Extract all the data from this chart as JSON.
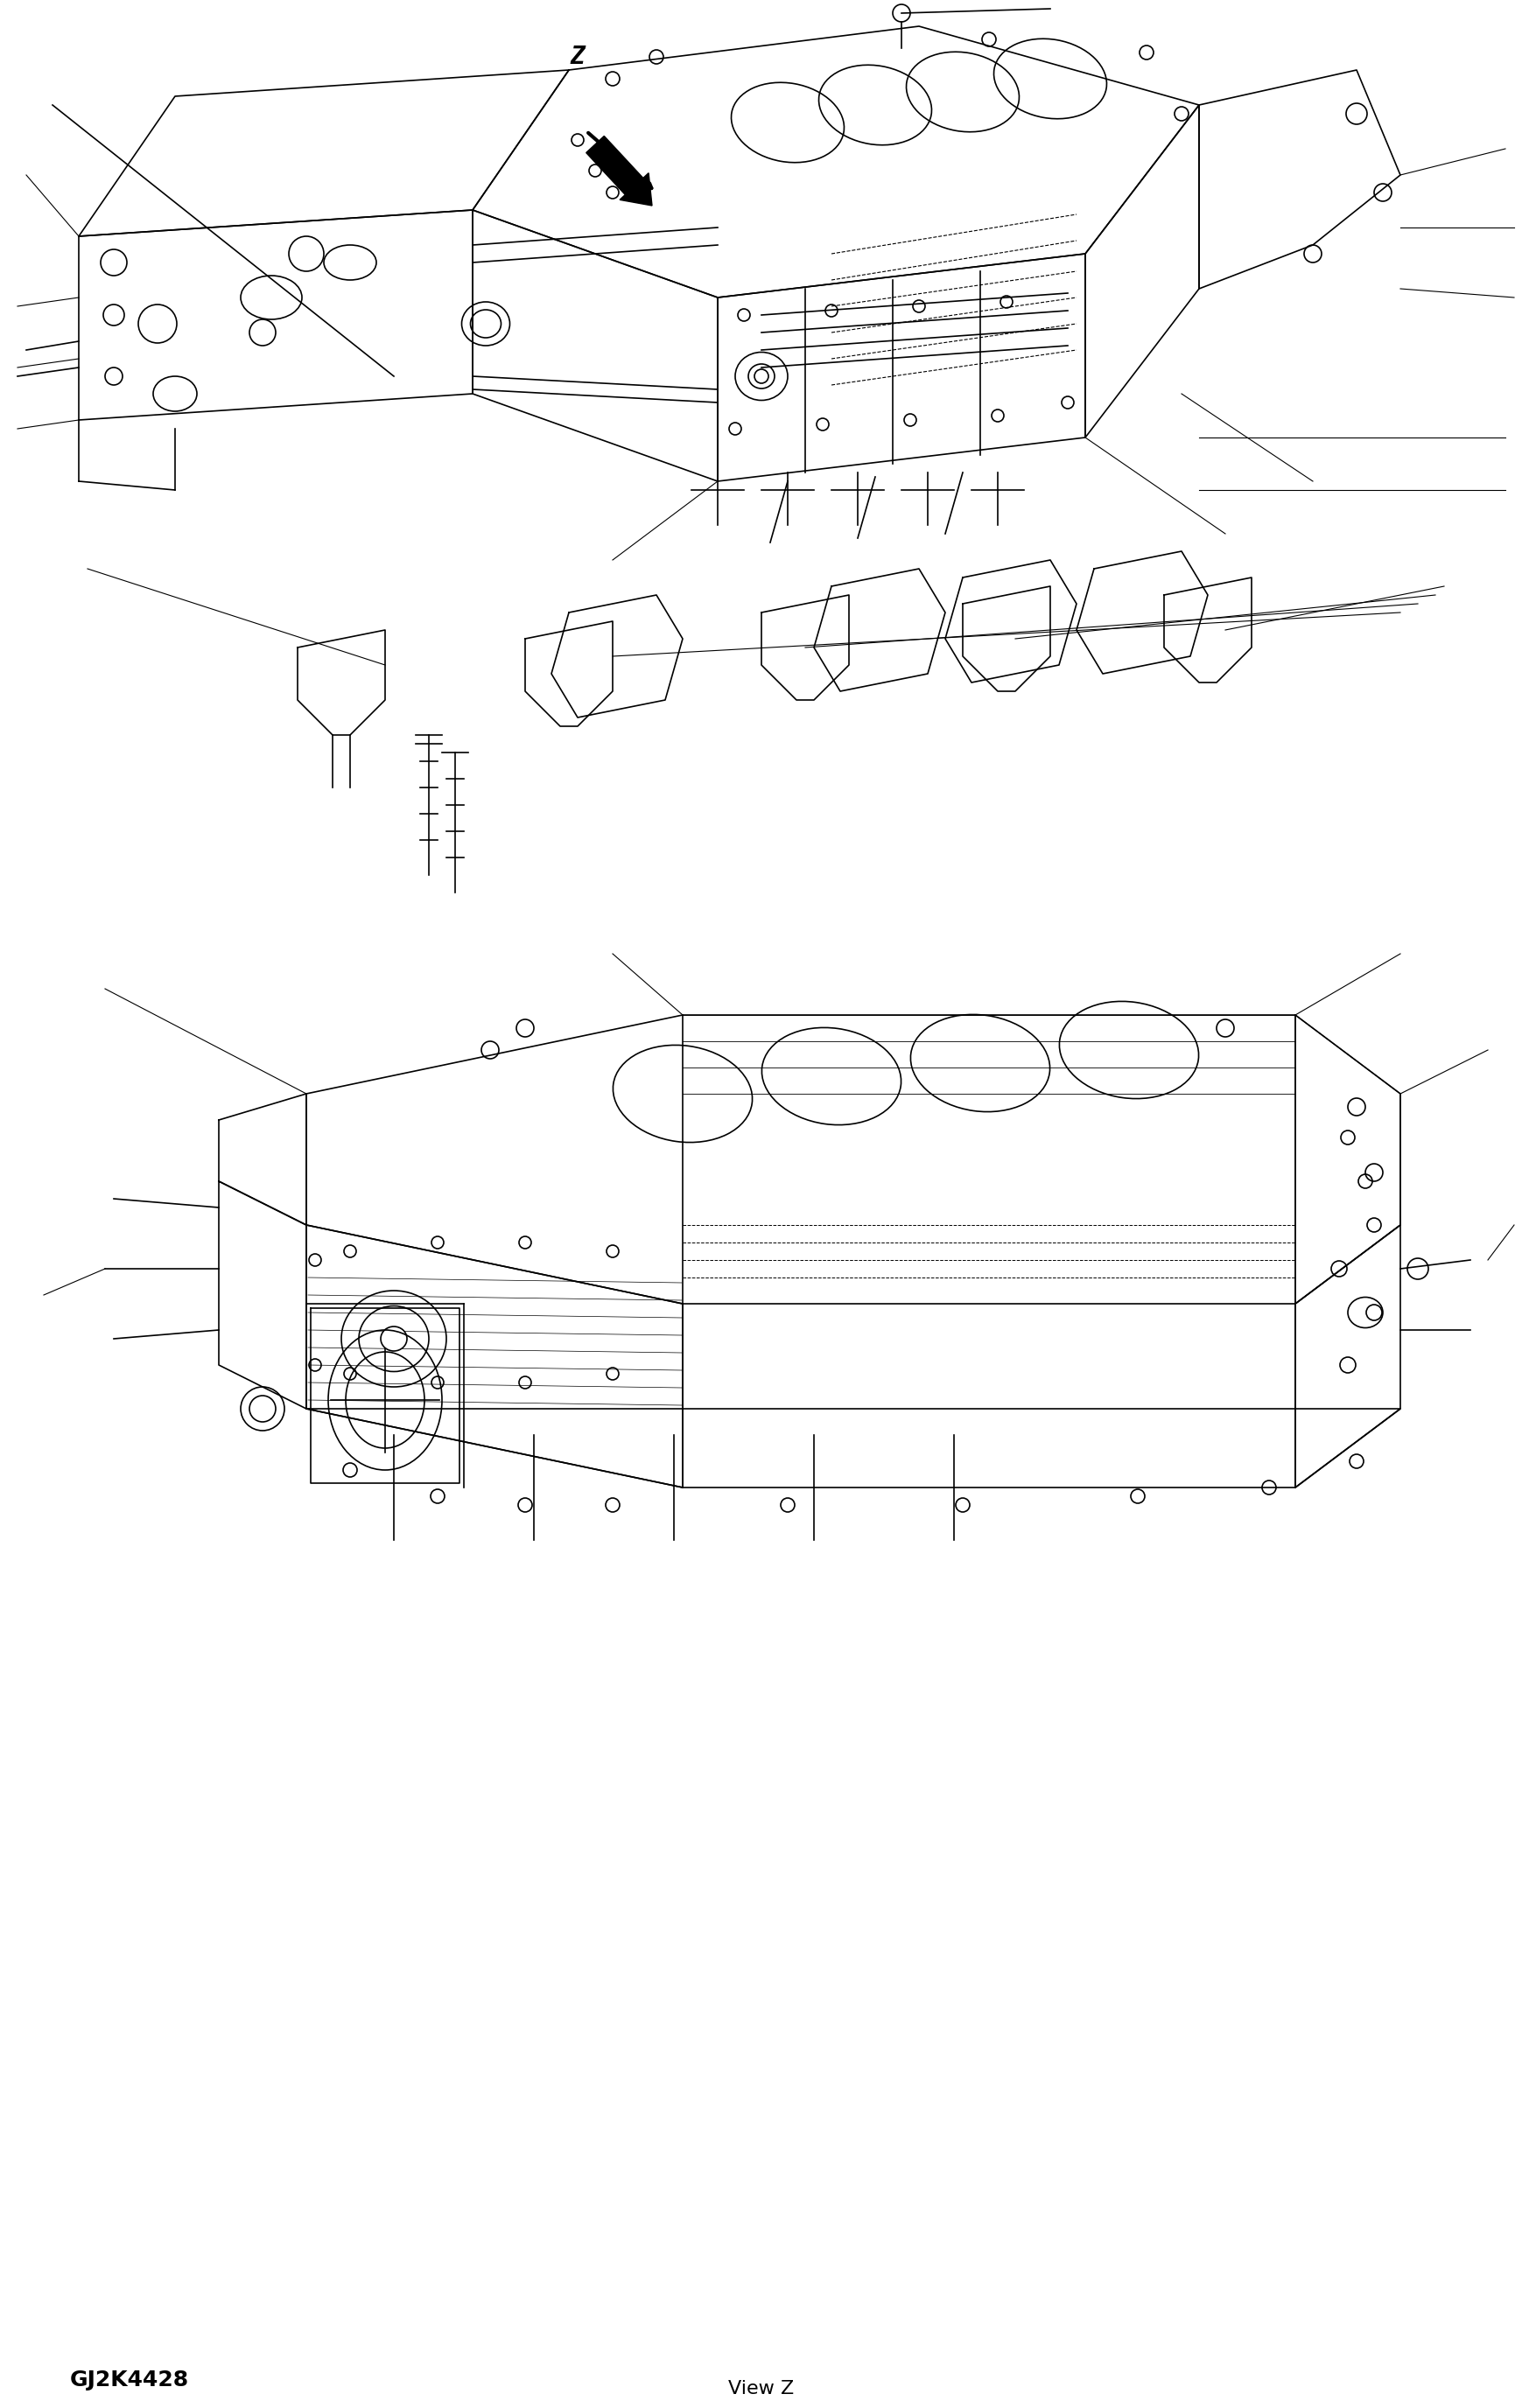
{
  "bg_color": "#ffffff",
  "line_color": "#000000",
  "title_bottom_left": "GJ2K4428",
  "title_bottom_right": "View Z",
  "view_label": "Z",
  "arrow_label": "Z",
  "fig_width": 17.39,
  "fig_height": 27.52
}
